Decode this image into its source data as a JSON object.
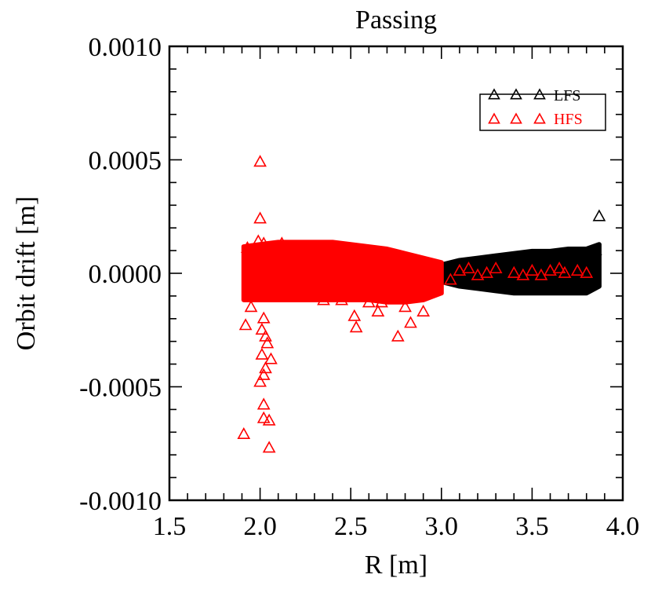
{
  "chart_data": {
    "type": "scatter",
    "title": "Passing",
    "xlabel": "R [m]",
    "ylabel": "Orbit drift [m]",
    "xlim": [
      1.5,
      4.0
    ],
    "ylim": [
      -0.001,
      0.001
    ],
    "xticks": [
      1.5,
      2.0,
      2.5,
      3.0,
      3.5,
      4.0
    ],
    "xtick_labels": [
      "1.5",
      "2.0",
      "2.5",
      "3.0",
      "3.5",
      "4.0"
    ],
    "yticks": [
      -0.001,
      -0.0005,
      0.0,
      0.0005,
      0.001
    ],
    "ytick_labels": [
      "-0.0010",
      "-0.0005",
      "0.0000",
      "0.0005",
      "0.0010"
    ],
    "grid": false,
    "legend_position": "top-right",
    "marker": "triangle-open",
    "series": [
      {
        "name": "LFS",
        "color": "#000000",
        "band": {
          "x": [
            3.0,
            3.1,
            3.2,
            3.3,
            3.4,
            3.5,
            3.6,
            3.7,
            3.8,
            3.87
          ],
          "upper": [
            2e-05,
            4e-05,
            5e-05,
            6e-05,
            7e-05,
            8e-05,
            8e-05,
            9e-05,
            9e-05,
            0.00011
          ],
          "lower": [
            -2e-05,
            -4e-05,
            -5e-05,
            -6e-05,
            -7e-05,
            -7e-05,
            -7e-05,
            -7e-05,
            -7e-05,
            -4e-05
          ]
        },
        "outliers": [
          {
            "x": 3.87,
            "y": 0.00025
          },
          {
            "x": 3.85,
            "y": 0.0001
          }
        ]
      },
      {
        "name": "HFS",
        "color": "#ff0000",
        "band": {
          "x": [
            1.91,
            2.0,
            2.1,
            2.2,
            2.3,
            2.4,
            2.5,
            2.6,
            2.7,
            2.8,
            2.9,
            3.0
          ],
          "upper": [
            0.0001,
            0.00011,
            0.00012,
            0.00012,
            0.00012,
            0.00012,
            0.00011,
            0.0001,
            9e-05,
            7e-05,
            5e-05,
            3e-05
          ],
          "lower": [
            -0.0001,
            -0.0001,
            -0.0001,
            -0.0001,
            -0.0001,
            -0.0001,
            -0.0001,
            -0.0001,
            -0.00011,
            -0.00011,
            -0.0001,
            -7e-05
          ]
        },
        "outliers": [
          {
            "x": 2.0,
            "y": 0.00049
          },
          {
            "x": 2.0,
            "y": 0.00024
          },
          {
            "x": 1.91,
            "y": -0.00071
          },
          {
            "x": 2.05,
            "y": -0.00077
          },
          {
            "x": 2.05,
            "y": -0.00065
          },
          {
            "x": 2.02,
            "y": -0.00064
          },
          {
            "x": 2.02,
            "y": -0.00058
          },
          {
            "x": 2.0,
            "y": -0.00048
          },
          {
            "x": 2.03,
            "y": -0.00042
          },
          {
            "x": 2.06,
            "y": -0.00038
          },
          {
            "x": 2.01,
            "y": -0.00036
          },
          {
            "x": 2.02,
            "y": -0.00045
          },
          {
            "x": 2.04,
            "y": -0.00031
          },
          {
            "x": 2.03,
            "y": -0.00028
          },
          {
            "x": 2.01,
            "y": -0.00025
          },
          {
            "x": 1.92,
            "y": -0.00023
          },
          {
            "x": 1.95,
            "y": -0.00015
          },
          {
            "x": 2.02,
            "y": -0.0002
          },
          {
            "x": 2.52,
            "y": -0.00019
          },
          {
            "x": 2.53,
            "y": -0.00024
          },
          {
            "x": 2.65,
            "y": -0.00017
          },
          {
            "x": 2.67,
            "y": -0.00013
          },
          {
            "x": 2.76,
            "y": -0.00028
          },
          {
            "x": 2.83,
            "y": -0.00022
          },
          {
            "x": 2.9,
            "y": -0.00017
          },
          {
            "x": 2.35,
            "y": -0.00012
          },
          {
            "x": 2.45,
            "y": -0.00012
          },
          {
            "x": 2.6,
            "y": -0.00013
          },
          {
            "x": 2.8,
            "y": -0.00015
          },
          {
            "x": 1.99,
            "y": 0.00014
          },
          {
            "x": 2.02,
            "y": 0.00013
          },
          {
            "x": 2.12,
            "y": 0.00013
          },
          {
            "x": 1.93,
            "y": 0.00011
          },
          {
            "x": 3.1,
            "y": 1e-05
          },
          {
            "x": 3.2,
            "y": -1e-05
          },
          {
            "x": 3.3,
            "y": 2e-05
          },
          {
            "x": 3.4,
            "y": 0.0
          },
          {
            "x": 3.5,
            "y": 1e-05
          },
          {
            "x": 3.55,
            "y": -1e-05
          },
          {
            "x": 3.6,
            "y": 1e-05
          },
          {
            "x": 3.68,
            "y": 0.0
          },
          {
            "x": 3.75,
            "y": 1e-05
          },
          {
            "x": 3.8,
            "y": 0.0
          },
          {
            "x": 3.05,
            "y": -3e-05
          },
          {
            "x": 3.15,
            "y": 2e-05
          },
          {
            "x": 3.25,
            "y": 0.0
          },
          {
            "x": 3.45,
            "y": -1e-05
          },
          {
            "x": 3.65,
            "y": 2e-05
          }
        ]
      }
    ]
  }
}
